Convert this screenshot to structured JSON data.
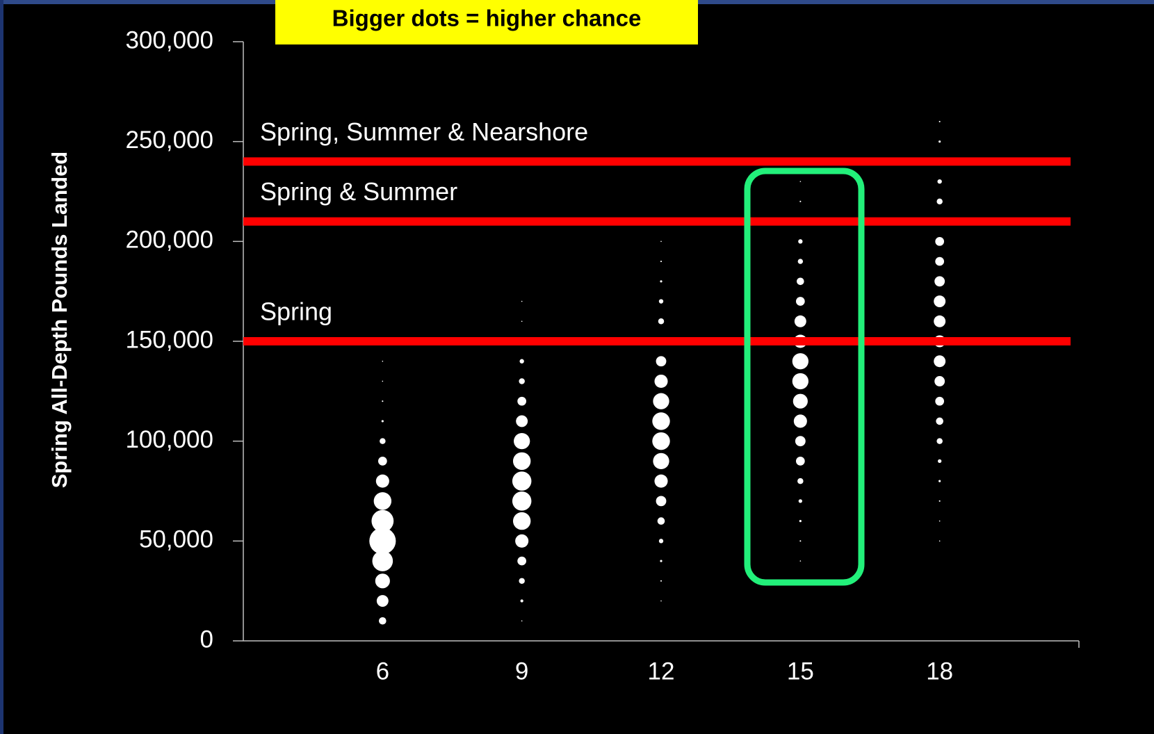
{
  "chart_data": {
    "type": "bubble",
    "annotation": "Bigger dots = higher chance",
    "y_label": "Spring All-Depth Pounds Landed",
    "xlim": [
      3,
      21
    ],
    "xticks": [
      6,
      9,
      12,
      15,
      18
    ],
    "ylim": [
      0,
      300000
    ],
    "yticks": [
      {
        "value": 0,
        "label": "0"
      },
      {
        "value": 50000,
        "label": "50,000"
      },
      {
        "value": 100000,
        "label": "100,000"
      },
      {
        "value": 150000,
        "label": "150,000"
      },
      {
        "value": 200000,
        "label": "200,000"
      },
      {
        "value": 250000,
        "label": "250,000"
      },
      {
        "value": 300000,
        "label": "300,000"
      }
    ],
    "color": "#ffffff",
    "groups": [
      {
        "x": 6,
        "y": [
          10000,
          20000,
          30000,
          40000,
          50000,
          60000,
          70000,
          80000,
          90000,
          100000,
          110000,
          120000,
          130000,
          140000
        ],
        "sizes": [
          5,
          8,
          10,
          14,
          18,
          15,
          12,
          9,
          6,
          4,
          1.5,
          1,
          0.5,
          0.5
        ]
      },
      {
        "x": 9,
        "y": [
          10000,
          20000,
          30000,
          40000,
          50000,
          60000,
          70000,
          80000,
          90000,
          100000,
          110000,
          120000,
          130000,
          140000,
          160000,
          170000
        ],
        "sizes": [
          0.5,
          2,
          4,
          6,
          9,
          12,
          13,
          13,
          12,
          11,
          8,
          6,
          4,
          3,
          0.5,
          0.5
        ]
      },
      {
        "x": 12,
        "y": [
          20000,
          30000,
          40000,
          50000,
          60000,
          70000,
          80000,
          90000,
          100000,
          110000,
          120000,
          130000,
          140000,
          160000,
          170000,
          180000,
          190000,
          200000
        ],
        "sizes": [
          0.5,
          1,
          1.5,
          3,
          5,
          7,
          9,
          11,
          12,
          12,
          11,
          9,
          7,
          4,
          3,
          1.5,
          1,
          0.5
        ]
      },
      {
        "x": 15,
        "y": [
          40000,
          50000,
          60000,
          70000,
          80000,
          90000,
          100000,
          110000,
          120000,
          130000,
          140000,
          150000,
          160000,
          170000,
          180000,
          190000,
          200000,
          220000,
          230000
        ],
        "sizes": [
          0.5,
          1,
          1.5,
          2.5,
          4,
          6,
          7,
          9,
          10,
          11,
          11,
          9,
          8,
          6,
          5,
          3.5,
          3,
          1,
          0.5
        ]
      },
      {
        "x": 18,
        "y": [
          50000,
          60000,
          70000,
          80000,
          90000,
          100000,
          110000,
          120000,
          130000,
          140000,
          150000,
          160000,
          170000,
          180000,
          190000,
          200000,
          220000,
          230000,
          250000,
          260000
        ],
        "sizes": [
          0.5,
          0.5,
          1,
          1.5,
          2.5,
          4,
          5,
          6,
          7,
          8,
          8,
          8,
          8,
          7,
          6,
          6,
          4,
          3,
          1.5,
          1
        ]
      }
    ],
    "reference_lines": [
      {
        "value": 240000,
        "label": "Spring, Summer & Nearshore",
        "color": "#ff0000"
      },
      {
        "value": 210000,
        "label": "Spring & Summer",
        "color": "#ff0000"
      },
      {
        "value": 150000,
        "label": "Spring",
        "color": "#ff0000"
      }
    ]
  }
}
